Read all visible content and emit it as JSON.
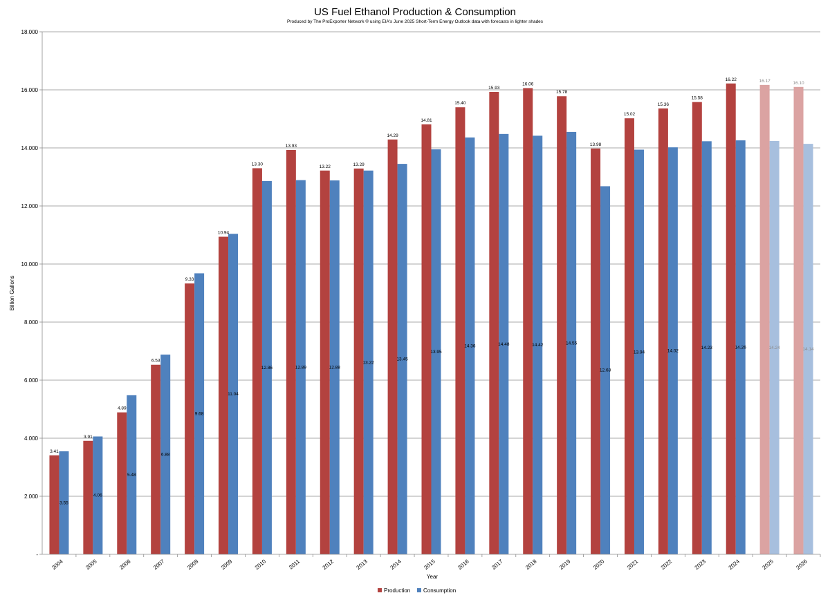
{
  "chart_data": {
    "type": "bar",
    "title": "US Fuel Ethanol Production & Consumption",
    "subtitle": "Produced by The ProExporter Network ® using EIA's June 2025 Short-Term Energy Outlook data with forecasts in lighter shades",
    "xlabel": "Year",
    "ylabel": "Billion Gallons",
    "ylim": [
      0,
      18
    ],
    "yticks": [
      "-",
      "2.000",
      "4.000",
      "6.000",
      "8.000",
      "10.000",
      "12.000",
      "14.000",
      "16.000",
      "18.000"
    ],
    "grid": true,
    "legend_position": "bottom",
    "categories": [
      "2004",
      "2005",
      "2006",
      "2007",
      "2008",
      "2009",
      "2010",
      "2011",
      "2012",
      "2013",
      "2014",
      "2015",
      "2016",
      "2017",
      "2018",
      "2019",
      "2020",
      "2021",
      "2022",
      "2023",
      "2024",
      "2025",
      "2026"
    ],
    "forecast_categories": [
      "2025",
      "2026"
    ],
    "series": [
      {
        "name": "Production",
        "color": "#b3423f",
        "forecast_color": "#dba3a2",
        "values": [
          3.41,
          3.91,
          4.89,
          6.53,
          9.33,
          10.94,
          13.3,
          13.93,
          13.22,
          13.29,
          14.29,
          14.81,
          15.4,
          15.93,
          16.06,
          15.78,
          13.98,
          15.02,
          15.36,
          15.58,
          16.22,
          16.17,
          16.1
        ],
        "labels": [
          "3.41",
          "3.91",
          "4.89",
          "6.53",
          "9.33",
          "10.94",
          "13.30",
          "13.93",
          "13.22",
          "13.29",
          "14.29",
          "14.81",
          "15.40",
          "15.93",
          "16.06",
          "15.78",
          "13.98",
          "15.02",
          "15.36",
          "15.58",
          "16.22",
          "16.17",
          "16.10"
        ]
      },
      {
        "name": "Consumption",
        "color": "#4f81bd",
        "forecast_color": "#a7bfde",
        "values": [
          3.55,
          4.06,
          5.48,
          6.88,
          9.68,
          11.04,
          12.86,
          12.89,
          12.88,
          13.22,
          13.45,
          13.95,
          14.36,
          14.48,
          14.42,
          14.55,
          12.68,
          13.94,
          14.02,
          14.23,
          14.26,
          14.24,
          14.14
        ],
        "labels": [
          "3.55",
          "4.06",
          "5.48",
          "6.88",
          "9.68",
          "11.04",
          "12.86",
          "12.89",
          "12.88",
          "13.22",
          "13.45",
          "13.95",
          "14.36",
          "14.48",
          "14.42",
          "14.55",
          "12.68",
          "13.94",
          "14.02",
          "14.23",
          "14.26",
          "14.24",
          "14.14"
        ]
      }
    ]
  }
}
